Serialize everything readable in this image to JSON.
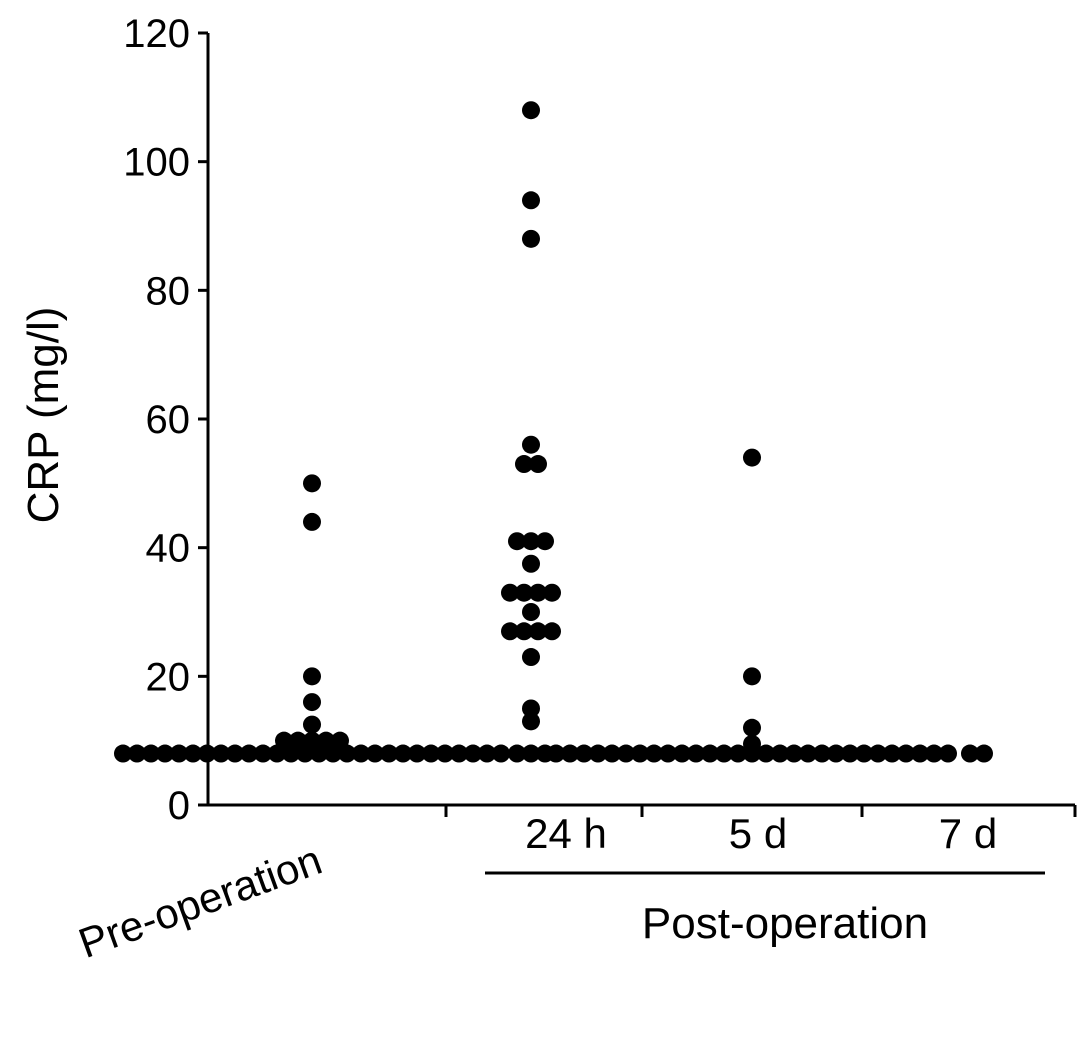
{
  "chart_data": {
    "type": "scatter",
    "ylabel": "CRP (mg/l)",
    "ylim": [
      0,
      120
    ],
    "yticks": [
      0,
      20,
      40,
      60,
      80,
      100,
      120
    ],
    "categories": [
      "Pre-operation",
      "24 h",
      "5 d",
      "7 d"
    ],
    "group_label": "Post-operation",
    "grid": false,
    "series": [
      {
        "category": "Pre-operation",
        "values": [
          8,
          8,
          8,
          8,
          8,
          8,
          8,
          8,
          8,
          8,
          8,
          8,
          8,
          8,
          8,
          8,
          8,
          8,
          8,
          8,
          8,
          8,
          8,
          8,
          8,
          8,
          8,
          8,
          9,
          9,
          9,
          9,
          10,
          10,
          10,
          10,
          10,
          12.5,
          16,
          20,
          44,
          50
        ]
      },
      {
        "category": "24 h",
        "values": [
          8,
          8,
          8,
          13,
          15,
          23,
          27,
          27,
          27,
          27,
          30,
          33,
          33,
          33,
          33,
          37.5,
          41,
          41,
          41,
          53,
          53,
          56,
          88,
          94,
          108
        ]
      },
      {
        "category": "5 d",
        "values": [
          8,
          8,
          8,
          8,
          8,
          8,
          8,
          8,
          8,
          8,
          8,
          8,
          8,
          8,
          8,
          8,
          8,
          8,
          8,
          8,
          8,
          8,
          8,
          8,
          8,
          8,
          8,
          8,
          8,
          9.5,
          12,
          20,
          54
        ]
      },
      {
        "category": "7 d",
        "values": [
          8,
          8
        ]
      }
    ]
  }
}
